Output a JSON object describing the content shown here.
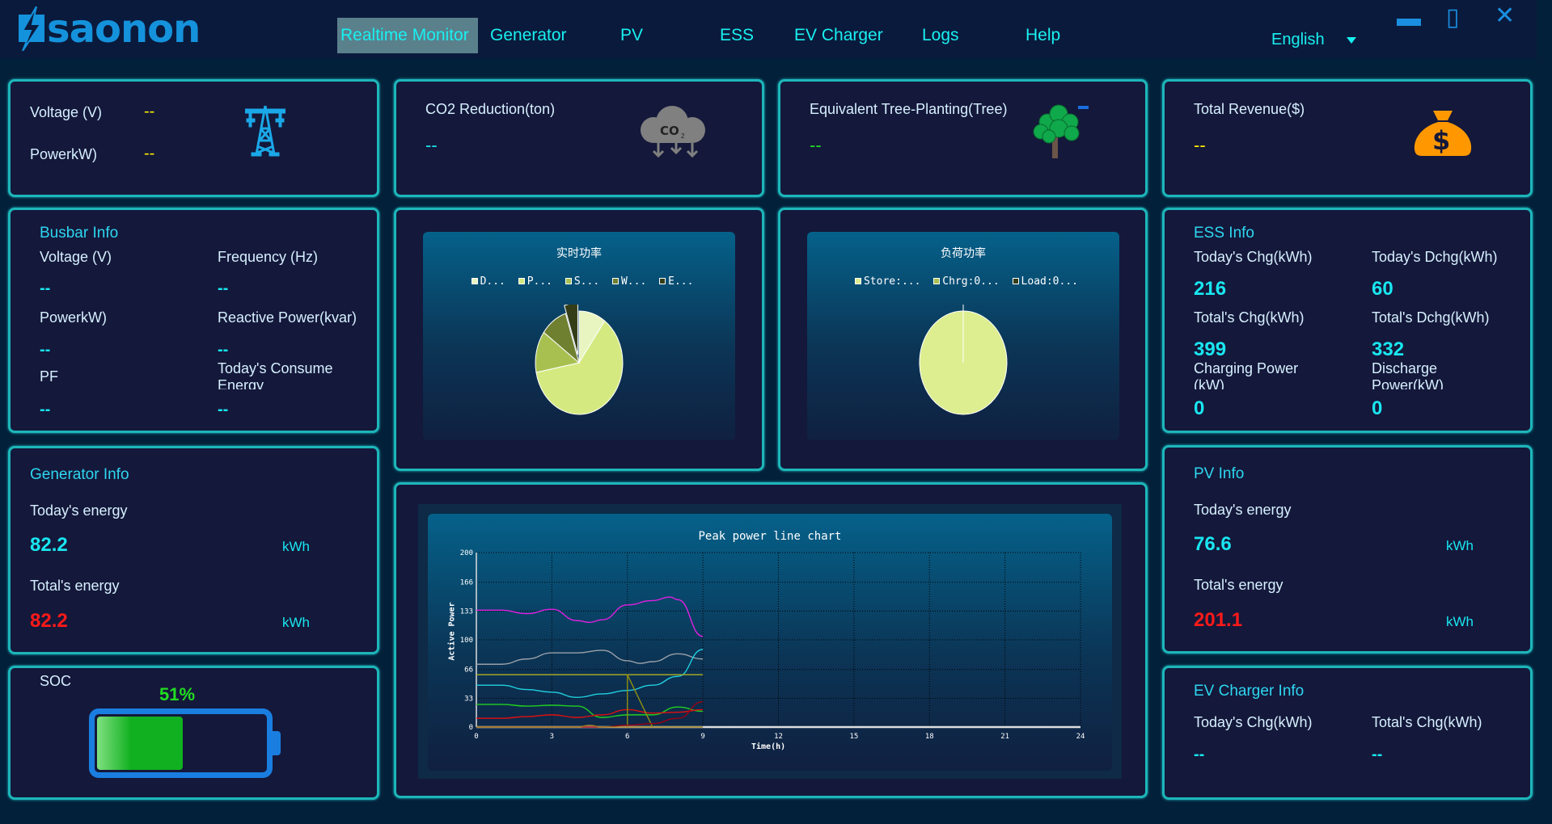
{
  "header": {
    "brand": "saonon",
    "nav": [
      "Realtime Monitor",
      "Generator",
      "PV",
      "ESS",
      "EV Charger",
      "Logs",
      "Help"
    ],
    "active": "Realtime Monitor",
    "language": "English"
  },
  "grid": {
    "voltage_label": "Voltage (V)",
    "voltage_value": "--",
    "power_label": "PowerkW)",
    "power_value": "--",
    "icon": "power-tower-icon"
  },
  "co2": {
    "label": "CO2 Reduction(ton)",
    "value": "--",
    "icon": "co2-cloud-icon"
  },
  "tree": {
    "label": "Equivalent Tree-Planting(Tree)",
    "value": "--",
    "icon": "tree-icon"
  },
  "revenue": {
    "label": "Total Revenue($)",
    "value": "--",
    "icon": "money-bag-icon"
  },
  "busbar": {
    "title": "Busbar Info",
    "voltage_label": "Voltage (V)",
    "voltage_value": "--",
    "frequency_label": "Frequency (Hz)",
    "frequency_value": "--",
    "power_label": "PowerkW)",
    "power_value": "--",
    "reactive_label": "Reactive Power(kvar)",
    "reactive_value": "--",
    "pf_label": "PF",
    "pf_value": "--",
    "consume_label": "Today's Consume Energy",
    "consume_value": "--"
  },
  "generator": {
    "title": "Generator Info",
    "today_label": "Today's energy",
    "today_value": "82.2",
    "today_unit": "kWh",
    "total_label": "Total's energy",
    "total_value": "82.2",
    "total_unit": "kWh"
  },
  "soc": {
    "label": "SOC",
    "value_text": "51%",
    "percent": 51
  },
  "ess": {
    "title": "ESS Info",
    "today_chg_label": "Today's Chg(kWh)",
    "today_chg": "216",
    "today_dchg_label": "Today's Dchg(kWh)",
    "today_dchg": "60",
    "total_chg_label": "Total's Chg(kWh)",
    "total_chg": "399",
    "total_dchg_label": "Total's Dchg(kWh)",
    "total_dchg": "332",
    "charging_label": "Charging Power (kW)",
    "charging": "0",
    "discharge_label": "Discharge Power(kW)",
    "discharge": "0"
  },
  "pv": {
    "title": "PV Info",
    "today_label": "Today's energy",
    "today_value": "76.6",
    "today_unit": "kWh",
    "total_label": "Total's energy",
    "total_value": "201.1",
    "total_unit": "kWh"
  },
  "ev": {
    "title": "EV Charger Info",
    "today_label": "Today's Chg(kWh)",
    "today_value": "--",
    "total_label": "Total's Chg(kWh)",
    "total_value": "--"
  },
  "chart_data": [
    {
      "type": "pie",
      "title": "实时功率",
      "legend": [
        "D...",
        "P...",
        "S...",
        "W...",
        "E..."
      ],
      "values": [
        10,
        62,
        13,
        10,
        5
      ],
      "colors": [
        "#e8f5c0",
        "#d4ea80",
        "#a8c050",
        "#6f8030",
        "#333d18"
      ],
      "exploded": [
        4
      ]
    },
    {
      "type": "pie",
      "title": "负荷功率",
      "legend": [
        "Store:...",
        "Chrg:0...",
        "Load:0..."
      ],
      "values": [
        100,
        0,
        0
      ],
      "colors": [
        "#dcee90",
        "#a8c050",
        "#333d18"
      ]
    },
    {
      "type": "line",
      "title": "Peak power line chart",
      "xlabel": "Time(h)",
      "ylabel": "Active Power",
      "xlim": [
        0,
        24
      ],
      "ylim": [
        0,
        200
      ],
      "xticks": [
        0,
        3,
        6,
        9,
        12,
        15,
        18,
        21,
        24
      ],
      "yticks": [
        0,
        33,
        66,
        100,
        133,
        166,
        200
      ],
      "grid": true,
      "series": [
        {
          "color": "#e020e0",
          "x": [
            0,
            1,
            2,
            3,
            4,
            4.5,
            5,
            6,
            7,
            7.7,
            8,
            9
          ],
          "y": [
            134,
            134,
            130,
            135,
            122,
            120,
            123,
            140,
            145,
            149,
            146,
            104
          ]
        },
        {
          "color": "#9aa0a8",
          "x": [
            0,
            1,
            2,
            3,
            4,
            5,
            6,
            6.5,
            7,
            8,
            9
          ],
          "y": [
            72,
            72,
            78,
            85,
            85,
            88,
            76,
            73,
            75,
            84,
            78
          ]
        },
        {
          "color": "#20d0e0",
          "x": [
            0,
            1,
            2,
            3,
            4,
            5,
            6,
            7,
            8,
            9
          ],
          "y": [
            48,
            48,
            43,
            40,
            34,
            38,
            42,
            48,
            58,
            89
          ]
        },
        {
          "color": "#20d020",
          "x": [
            0,
            1,
            2,
            3,
            4,
            5,
            6,
            7,
            8,
            9
          ],
          "y": [
            26,
            26,
            24,
            25,
            24,
            11,
            14,
            14,
            23,
            18
          ]
        },
        {
          "color": "#e01010",
          "x": [
            0,
            1,
            2,
            3,
            4,
            5,
            6,
            7,
            8,
            9
          ],
          "y": [
            10,
            10,
            12,
            14,
            11,
            14,
            20,
            16,
            17,
            20
          ]
        },
        {
          "color": "#b0b020",
          "x": [
            0,
            9
          ],
          "y": [
            60,
            60
          ]
        },
        {
          "color": "#909010",
          "x": [
            6,
            6,
            7
          ],
          "y": [
            0,
            60,
            0
          ]
        },
        {
          "color": "#a00010",
          "x": [
            0,
            5,
            6,
            7,
            8,
            9
          ],
          "y": [
            0,
            0,
            2,
            4,
            10,
            29
          ]
        },
        {
          "color": "#a08020",
          "x": [
            0,
            4,
            4.5,
            5,
            9
          ],
          "y": [
            0,
            0,
            2,
            0,
            0
          ]
        }
      ]
    }
  ]
}
